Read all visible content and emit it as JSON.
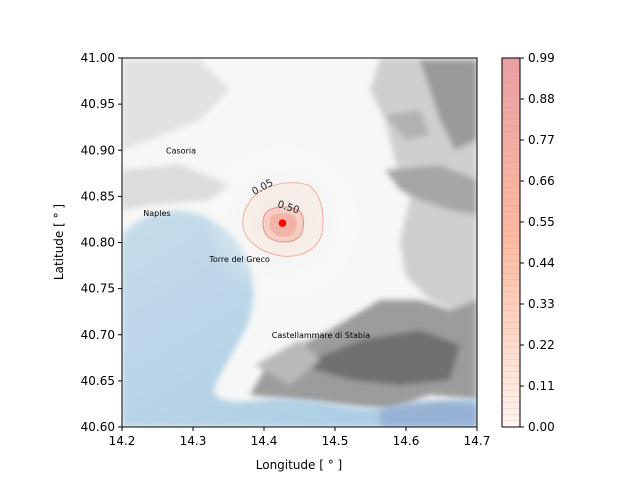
{
  "map": {
    "xlabel": "Longitude [$^\\circ$]",
    "ylabel": "Latitude [$^\\circ$]",
    "xlabel_display": "Longitude [ ° ]",
    "ylabel_display": "Latitude [ ° ]",
    "xlim": [
      14.2,
      14.7
    ],
    "ylim": [
      40.6,
      41.0
    ],
    "x_ticks": [
      "14.2",
      "14.3",
      "14.4",
      "14.5",
      "14.6",
      "14.7"
    ],
    "y_ticks": [
      "40.60",
      "40.65",
      "40.70",
      "40.75",
      "40.80",
      "40.85",
      "40.90",
      "40.95",
      "41.00"
    ],
    "places": [
      {
        "name": "Casoria",
        "lon": 14.262,
        "lat": 40.9
      },
      {
        "name": "Naples",
        "lon": 14.23,
        "lat": 40.832
      },
      {
        "name": "Torre del Greco",
        "lon": 14.323,
        "lat": 40.782
      },
      {
        "name": "Castellammare di Stabia",
        "lon": 14.411,
        "lat": 40.7
      }
    ],
    "vent": {
      "lon": 14.426,
      "lat": 40.821,
      "color": "#ff0000"
    },
    "contour_labels": [
      {
        "text": "0.05",
        "lon": 14.4,
        "lat": 40.857,
        "rotate": -28
      },
      {
        "text": "0.50",
        "lon": 14.433,
        "lat": 40.835,
        "rotate": 18
      }
    ],
    "sea_color": "#b6d3e6",
    "land_color": "#ffffff",
    "relief_color": "#6e6e6e"
  },
  "colorbar": {
    "ticks": [
      "0.00",
      "0.11",
      "0.22",
      "0.33",
      "0.44",
      "0.55",
      "0.66",
      "0.77",
      "0.88",
      "0.99"
    ],
    "min": 0.0,
    "max": 0.99,
    "color_low": "#fff5f0",
    "color_high": "#cb181d"
  }
}
